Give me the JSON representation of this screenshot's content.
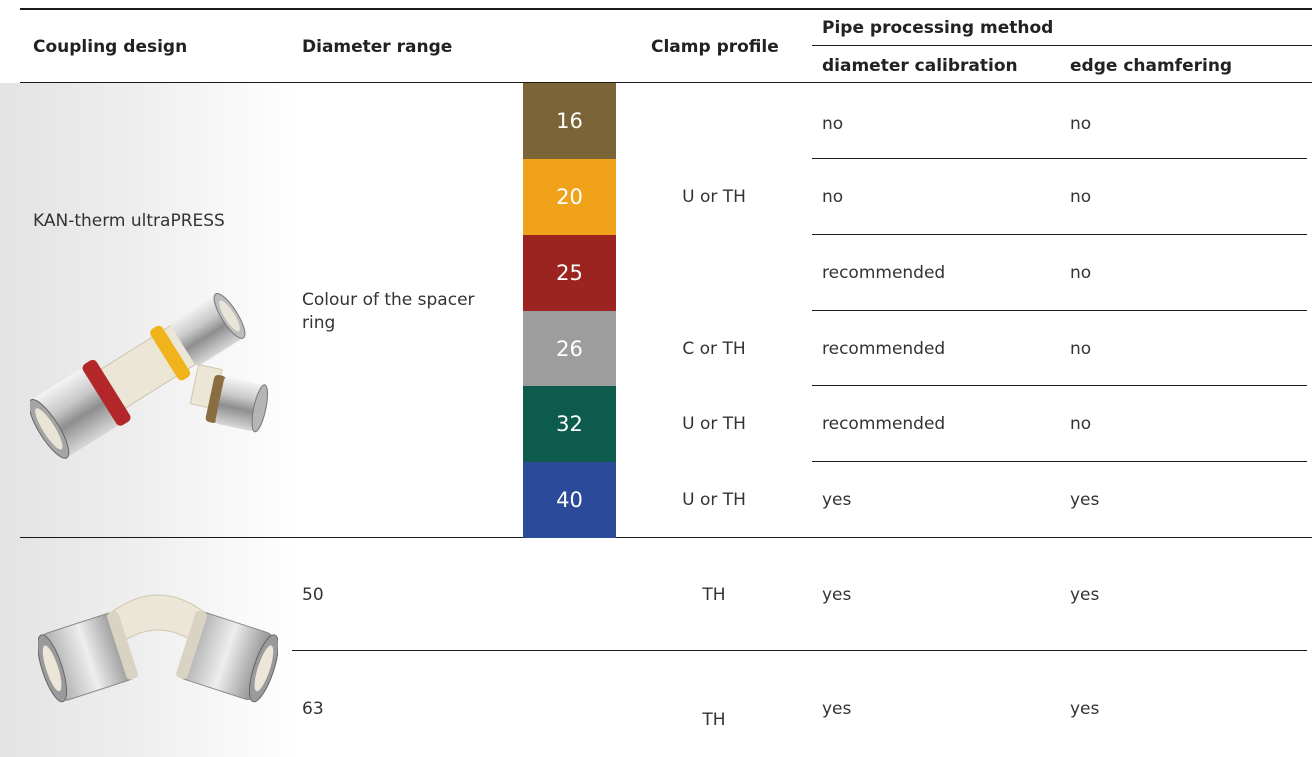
{
  "header": {
    "coupling_design": "Coupling design",
    "diameter_range": "Diameter range",
    "clamp_profile": "Clamp profile",
    "pipe_processing": "Pipe processing method",
    "diameter_calibration": "diameter calibration",
    "edge_chamfering": "edge chamfering"
  },
  "group1": {
    "product_name": "KAN-therm ultraPRESS",
    "diameter_note": "Colour of the spacer ring",
    "rows": [
      {
        "size": "16",
        "color": "#7b6437",
        "clamp": "",
        "calibration": "no",
        "chamfering": "no"
      },
      {
        "size": "20",
        "color": "#f0a31a",
        "clamp": "U or TH",
        "calibration": "no",
        "chamfering": "no"
      },
      {
        "size": "25",
        "color": "#9c2420",
        "clamp": "",
        "calibration": "recommended",
        "chamfering": "no"
      },
      {
        "size": "26",
        "color": "#9d9d9d",
        "clamp": "C or TH",
        "calibration": "recommended",
        "chamfering": "no"
      },
      {
        "size": "32",
        "color": "#0d5b4d",
        "clamp": "U or TH",
        "calibration": "recommended",
        "chamfering": "no"
      },
      {
        "size": "40",
        "color": "#2c4a9a",
        "clamp": "U or TH",
        "calibration": "yes",
        "chamfering": "yes"
      }
    ]
  },
  "group2": {
    "rows": [
      {
        "size": "50",
        "clamp": "TH",
        "calibration": "yes",
        "chamfering": "yes"
      },
      {
        "size": "63",
        "clamp": "TH",
        "calibration": "yes",
        "chamfering": "yes"
      }
    ]
  },
  "images": {
    "tee_fitting": "tee-press-fitting-photo",
    "elbow_fitting": "elbow-press-fitting-photo"
  }
}
